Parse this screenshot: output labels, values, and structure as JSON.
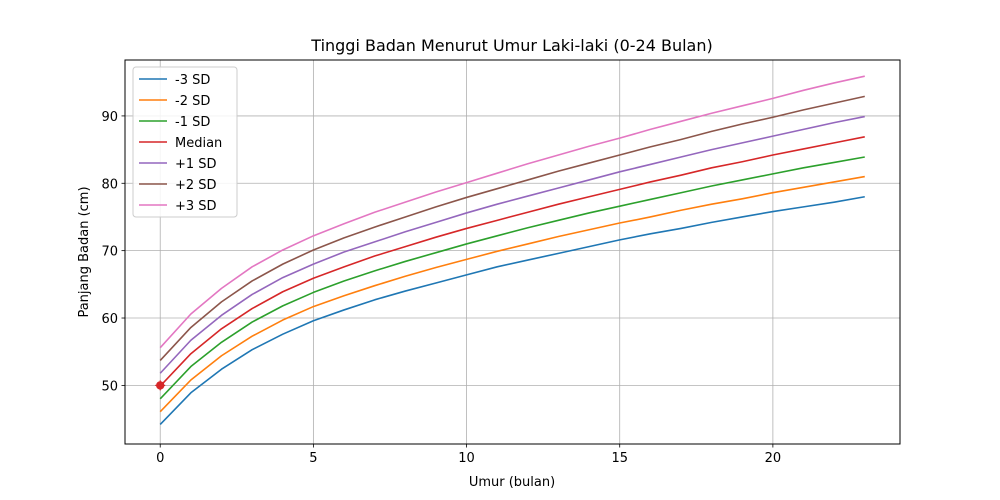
{
  "chart_data": {
    "type": "line",
    "title": "Tinggi Badan Menurut Umur Laki-laki (0-24 Bulan)",
    "xlabel": "Umur (bulan)",
    "ylabel": "Panjang Badan (cm)",
    "xlim": [
      -1.15,
      24.15
    ],
    "ylim": [
      41.3,
      98.3
    ],
    "xticks": [
      0,
      5,
      10,
      15,
      20
    ],
    "yticks": [
      50,
      60,
      70,
      80,
      90
    ],
    "grid": true,
    "legend_position": "top-left",
    "x": [
      0,
      1,
      2,
      3,
      4,
      5,
      6,
      7,
      8,
      9,
      10,
      11,
      12,
      13,
      14,
      15,
      16,
      17,
      18,
      19,
      20,
      21,
      22,
      23
    ],
    "series": [
      {
        "name": "-3 SD",
        "color": "#1f77b4",
        "values": [
          44.2,
          48.9,
          52.4,
          55.3,
          57.6,
          59.6,
          61.2,
          62.7,
          64.0,
          65.2,
          66.4,
          67.6,
          68.6,
          69.6,
          70.6,
          71.6,
          72.5,
          73.3,
          74.2,
          75.0,
          75.8,
          76.5,
          77.2,
          78.0
        ]
      },
      {
        "name": "-2 SD",
        "color": "#ff7f0e",
        "values": [
          46.1,
          50.8,
          54.4,
          57.3,
          59.7,
          61.7,
          63.3,
          64.8,
          66.2,
          67.5,
          68.7,
          69.9,
          71.0,
          72.1,
          73.1,
          74.1,
          75.0,
          76.0,
          76.9,
          77.7,
          78.6,
          79.4,
          80.2,
          81.0
        ]
      },
      {
        "name": "-1 SD",
        "color": "#2ca02c",
        "values": [
          48.0,
          52.8,
          56.4,
          59.4,
          61.8,
          63.8,
          65.5,
          67.0,
          68.4,
          69.7,
          71.0,
          72.2,
          73.4,
          74.5,
          75.6,
          76.6,
          77.6,
          78.6,
          79.6,
          80.5,
          81.4,
          82.3,
          83.1,
          83.9
        ]
      },
      {
        "name": "Median",
        "color": "#d62728",
        "values": [
          49.9,
          54.7,
          58.4,
          61.4,
          63.9,
          65.9,
          67.6,
          69.2,
          70.6,
          72.0,
          73.3,
          74.5,
          75.7,
          76.9,
          78.0,
          79.1,
          80.2,
          81.2,
          82.3,
          83.2,
          84.2,
          85.1,
          86.0,
          86.9
        ]
      },
      {
        "name": "+1 SD",
        "color": "#9467bd",
        "values": [
          51.8,
          56.7,
          60.4,
          63.5,
          66.0,
          68.0,
          69.8,
          71.3,
          72.8,
          74.2,
          75.6,
          76.9,
          78.1,
          79.3,
          80.5,
          81.7,
          82.8,
          83.9,
          85.0,
          86.0,
          87.0,
          88.0,
          89.0,
          89.9
        ]
      },
      {
        "name": "+2 SD",
        "color": "#8c564b",
        "values": [
          53.7,
          58.6,
          62.4,
          65.5,
          68.0,
          70.1,
          71.9,
          73.5,
          75.0,
          76.5,
          77.9,
          79.2,
          80.5,
          81.8,
          83.0,
          84.2,
          85.4,
          86.5,
          87.7,
          88.8,
          89.8,
          90.9,
          91.9,
          92.9
        ]
      },
      {
        "name": "+3 SD",
        "color": "#e377c2",
        "values": [
          55.6,
          60.6,
          64.4,
          67.6,
          70.1,
          72.2,
          74.0,
          75.7,
          77.2,
          78.7,
          80.1,
          81.5,
          82.9,
          84.2,
          85.5,
          86.7,
          88.0,
          89.2,
          90.4,
          91.5,
          92.6,
          93.8,
          94.9,
          95.9
        ]
      }
    ],
    "marker": {
      "x": 0,
      "y": 50,
      "color": "#d62728"
    }
  }
}
